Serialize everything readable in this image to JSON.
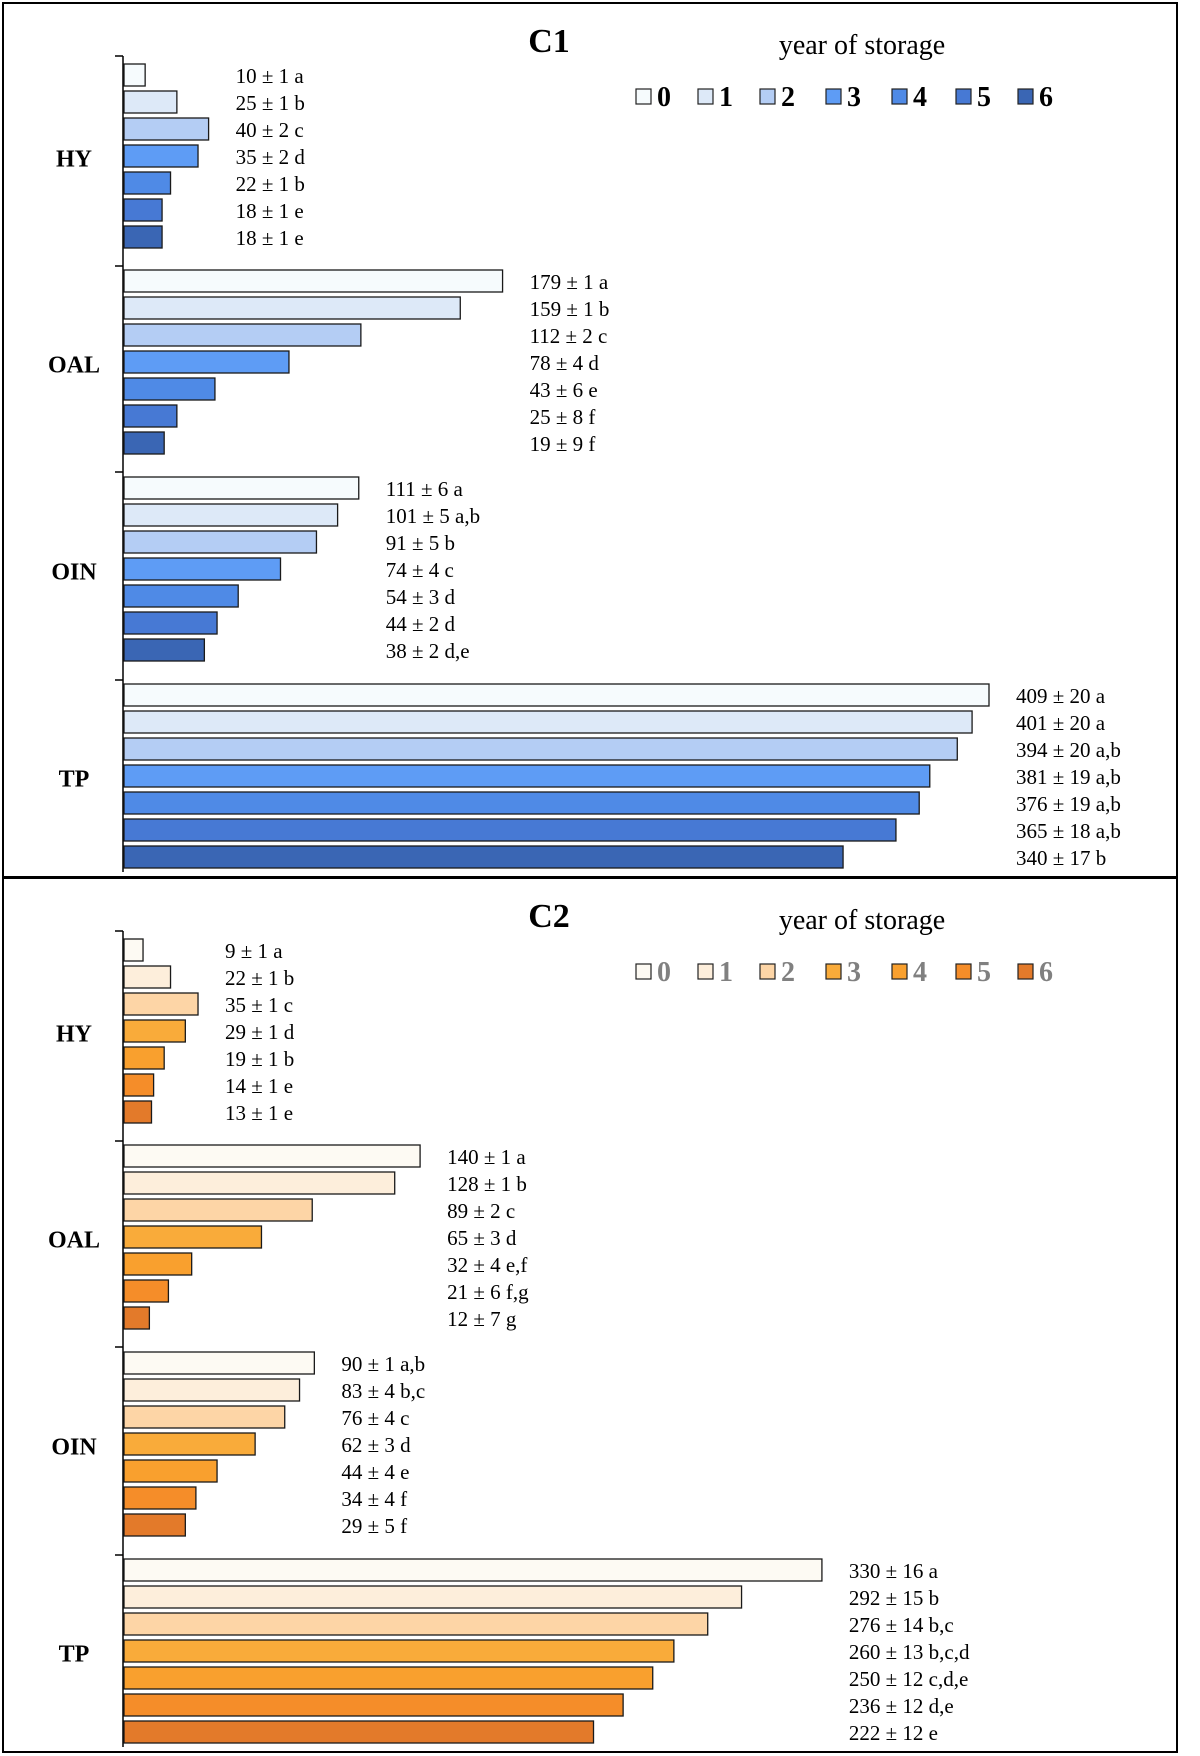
{
  "chart_data": [
    {
      "type": "bar",
      "title": "C1",
      "legend_title": "year of storage",
      "legend_labels": [
        "0",
        "1",
        "2",
        "3",
        "4",
        "5",
        "6"
      ],
      "series_names": [
        "0",
        "1",
        "2",
        "3",
        "4",
        "5",
        "6"
      ],
      "colors": [
        "#f6fbfd",
        "#dde9f8",
        "#b4cdf4",
        "#5e9cf5",
        "#4f8ae6",
        "#4779d4",
        "#3a66b4"
      ],
      "legend_text_color": "#000000",
      "value_scale_max": 409,
      "groups": [
        {
          "category": "HY",
          "values": [
            10,
            25,
            40,
            35,
            22,
            18,
            18
          ],
          "labels": [
            "10 ± 1 a",
            "25 ± 1 b",
            "40 ± 2 c",
            "35 ± 2 d",
            "22 ± 1 b",
            "18 ± 1 e",
            "18 ± 1 e"
          ]
        },
        {
          "category": "OAL",
          "values": [
            179,
            159,
            112,
            78,
            43,
            25,
            19
          ],
          "labels": [
            "179 ± 1 a",
            "159 ± 1 b",
            "112 ± 2 c",
            "78 ± 4 d",
            "43 ± 6 e",
            "25 ± 8 f",
            "19 ± 9 f"
          ]
        },
        {
          "category": "OIN",
          "values": [
            111,
            101,
            91,
            74,
            54,
            44,
            38
          ],
          "labels": [
            "111 ± 6 a",
            "101 ± 5 a,b",
            "91 ± 5 b",
            "74 ± 4 c",
            "54 ± 3 d",
            "44 ± 2 d",
            "38 ± 2 d,e"
          ]
        },
        {
          "category": "TP",
          "values": [
            409,
            401,
            394,
            381,
            376,
            365,
            340
          ],
          "labels": [
            "409 ± 20 a",
            "401 ± 20 a",
            "394 ± 20 a,b",
            "381 ± 19 a,b",
            "376 ± 19 a,b",
            "365 ± 18 a,b",
            "340 ± 17 b"
          ]
        }
      ]
    },
    {
      "type": "bar",
      "title": "C2",
      "legend_title": "year of storage",
      "legend_labels": [
        "0",
        "1",
        "2",
        "3",
        "4",
        "5",
        "6"
      ],
      "series_names": [
        "0",
        "1",
        "2",
        "3",
        "4",
        "5",
        "6"
      ],
      "colors": [
        "#fdfaf3",
        "#fdeedb",
        "#fdd5a6",
        "#f9ab3a",
        "#f9a02e",
        "#f58d29",
        "#e37a2a"
      ],
      "legend_text_color": "#808080",
      "value_scale_max": 409,
      "groups": [
        {
          "category": "HY",
          "values": [
            9,
            22,
            35,
            29,
            19,
            14,
            13
          ],
          "labels": [
            "9 ± 1 a",
            "22 ± 1 b",
            "35 ± 1 c",
            "29 ± 1 d",
            "19 ± 1 b",
            "14 ± 1 e",
            "13 ± 1 e"
          ]
        },
        {
          "category": "OAL",
          "values": [
            140,
            128,
            89,
            65,
            32,
            21,
            12
          ],
          "labels": [
            "140 ± 1 a",
            "128 ± 1 b",
            "89 ± 2 c",
            "65 ± 3 d",
            "32 ± 4 e,f",
            "21 ± 6 f,g",
            "12 ± 7 g"
          ]
        },
        {
          "category": "OIN",
          "values": [
            90,
            83,
            76,
            62,
            44,
            34,
            29
          ],
          "labels": [
            "90 ± 1 a,b",
            "83 ± 4 b,c",
            "76 ± 4 c",
            "62 ± 3 d",
            "44 ± 4 e",
            "34 ± 4 f",
            "29 ± 5 f"
          ]
        },
        {
          "category": "TP",
          "values": [
            330,
            292,
            276,
            260,
            250,
            236,
            222
          ],
          "labels": [
            "330 ± 16 a",
            "292 ± 15 b",
            "276 ± 14 b,c",
            "260 ± 13 b,c,d",
            "250 ± 12 c,d,e",
            "236 ± 12 d,e",
            "222 ± 12 e"
          ]
        }
      ]
    }
  ]
}
